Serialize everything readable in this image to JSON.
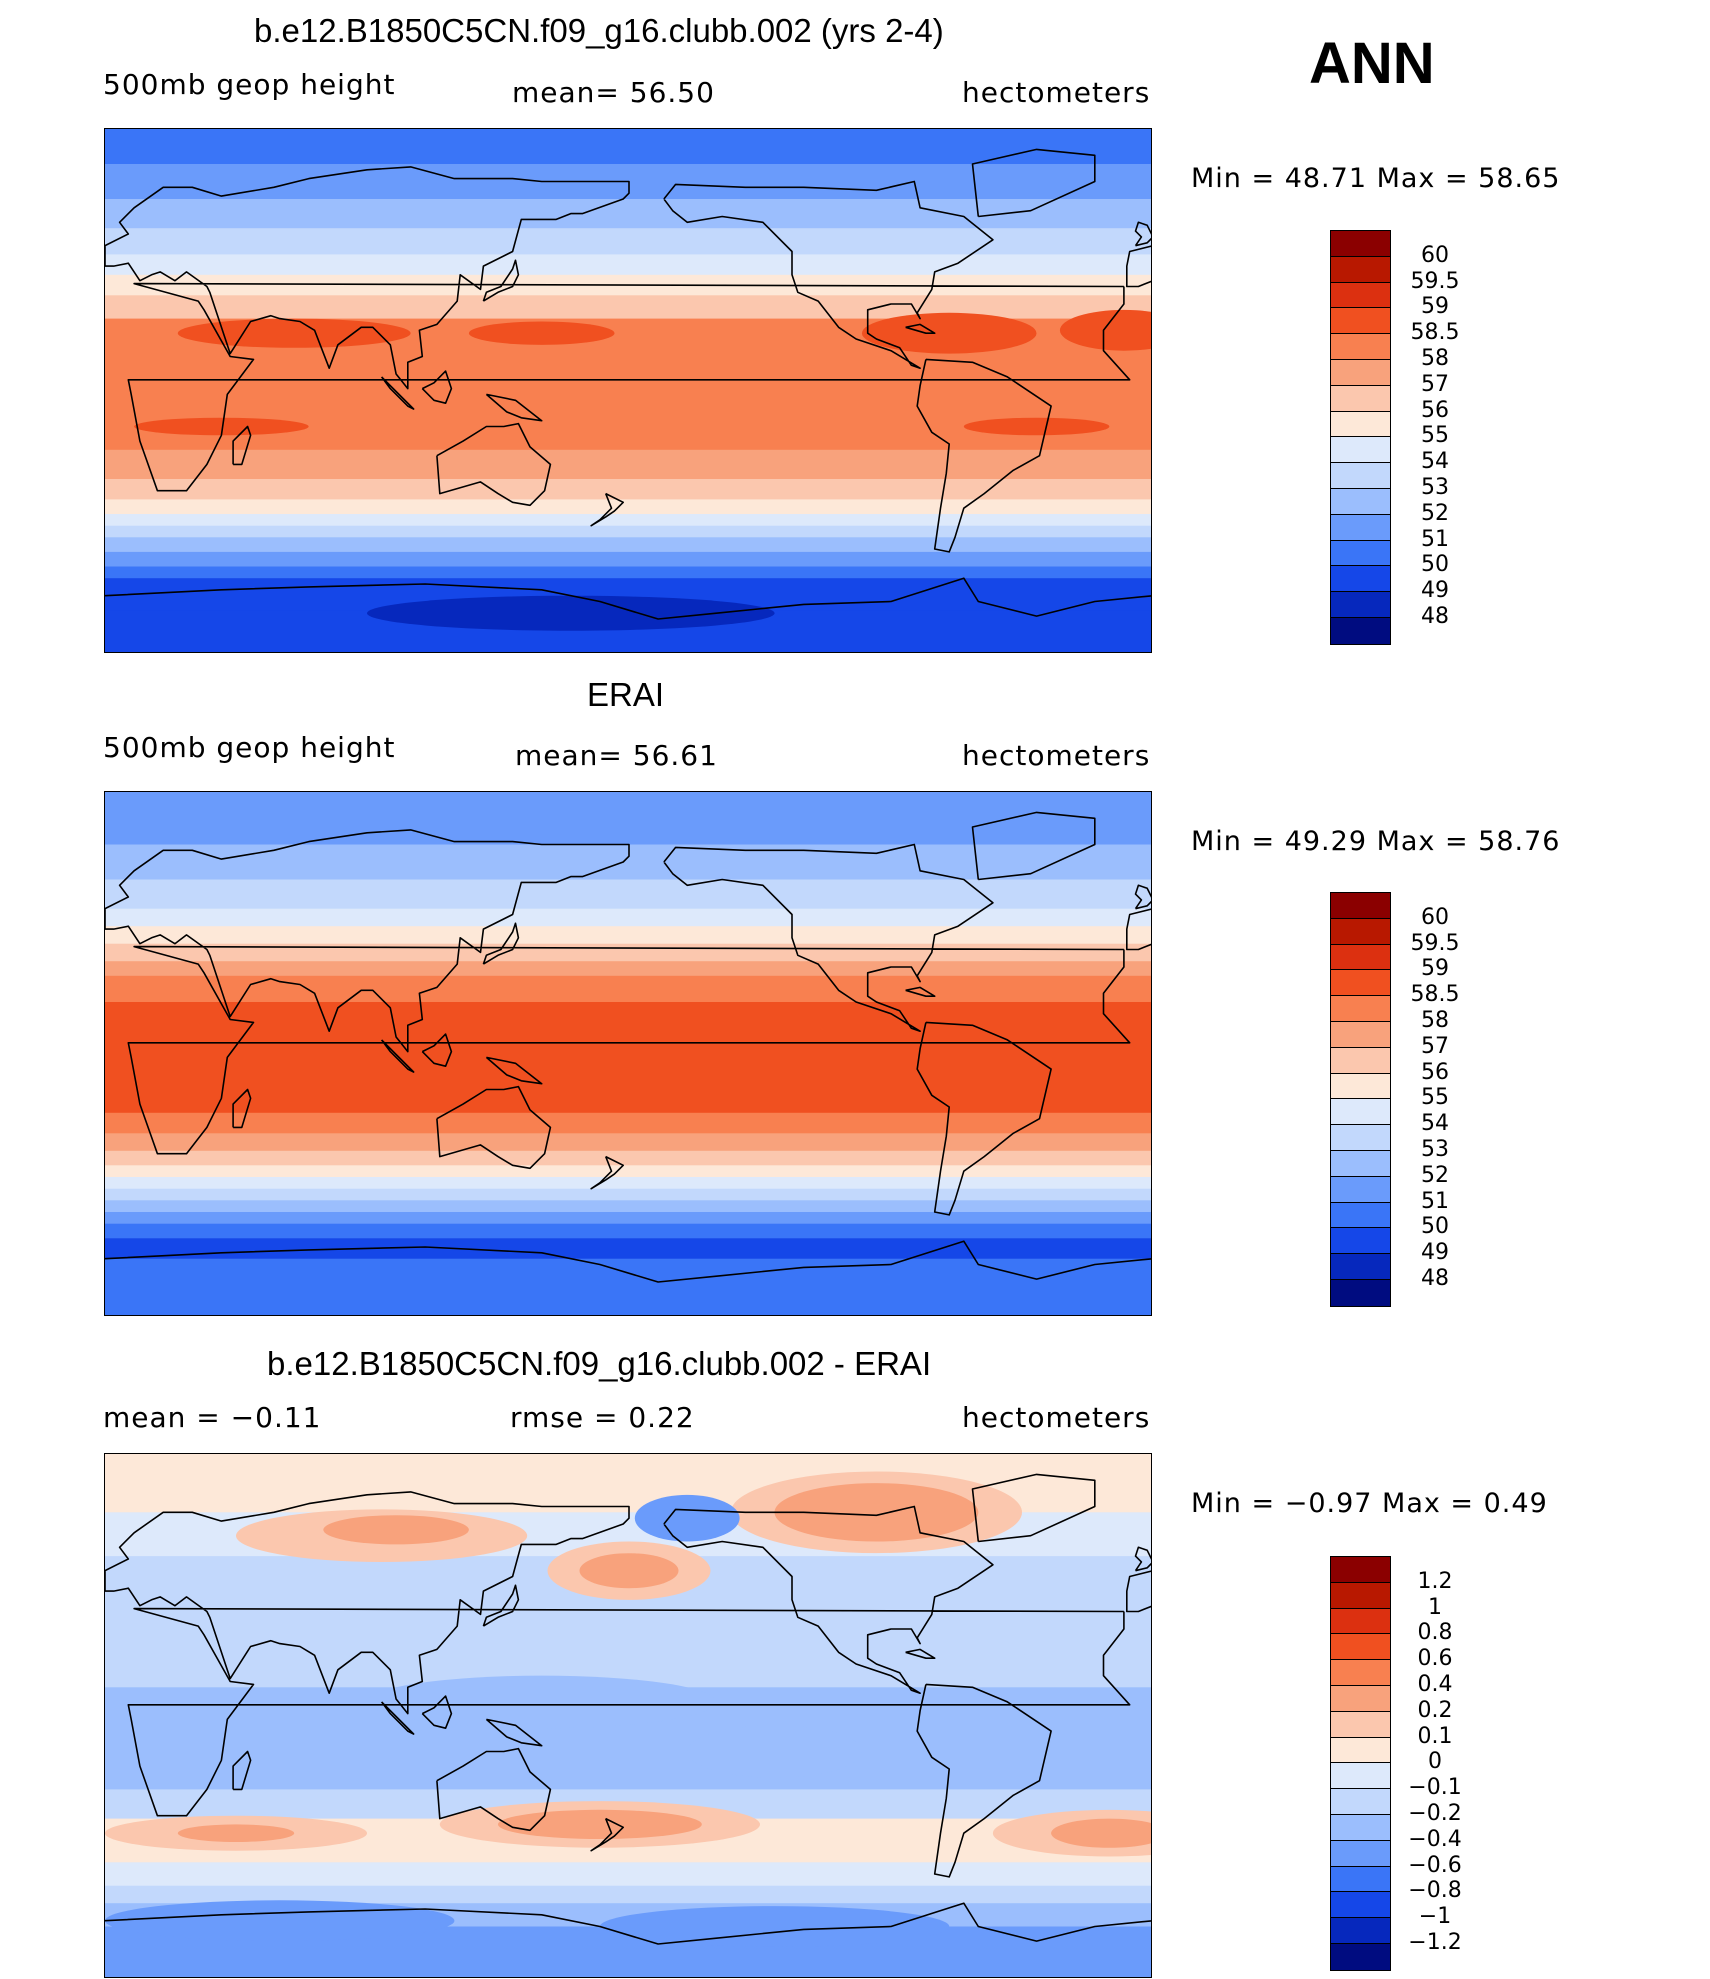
{
  "season": "ANN",
  "chart_data": [
    {
      "type": "heatmap",
      "title": "b.e12.B1850C5CN.f09_g16.clubb.002 (yrs 2-4)",
      "left_label": "500mb geop height",
      "center_label": "mean=  56.50",
      "right_label": "hectometers",
      "min_max": "Min =   48.71  Max =   58.65",
      "colorbar": {
        "levels": [
          "60",
          "59.5",
          "59",
          "58.5",
          "58",
          "57",
          "56",
          "55",
          "54",
          "53",
          "52",
          "51",
          "50",
          "49",
          "48"
        ],
        "colors": [
          "#8b0000",
          "#b81800",
          "#dc3010",
          "#f05020",
          "#f88050",
          "#f8a27c",
          "#fbc7ae",
          "#fde8d8",
          "#dde9fb",
          "#c2d8fc",
          "#9bbefd",
          "#6a9bfb",
          "#3a75f7",
          "#1547e8",
          "#0628bd",
          "#000c80"
        ]
      },
      "bands": [
        {
          "lat": 90,
          "color_index": 12
        },
        {
          "lat": 78,
          "color_index": 11
        },
        {
          "lat": 66,
          "color_index": 10
        },
        {
          "lat": 56,
          "color_index": 9
        },
        {
          "lat": 47,
          "color_index": 8
        },
        {
          "lat": 40,
          "color_index": 7
        },
        {
          "lat": 33,
          "color_index": 6
        },
        {
          "lat": 25,
          "color_index": 4
        },
        {
          "lat": -20,
          "color_index": 5
        },
        {
          "lat": -30,
          "color_index": 6
        },
        {
          "lat": -37,
          "color_index": 7
        },
        {
          "lat": -42,
          "color_index": 8
        },
        {
          "lat": -46,
          "color_index": 9
        },
        {
          "lat": -50,
          "color_index": 10
        },
        {
          "lat": -55,
          "color_index": 11
        },
        {
          "lat": -60,
          "color_index": 12
        },
        {
          "lat": -64,
          "color_index": 13
        },
        {
          "lat": -75,
          "color_index": 13
        }
      ],
      "blobs": [
        {
          "lon": 65,
          "lat": 20,
          "rlon": 40,
          "rlat": 5,
          "color_index": 3
        },
        {
          "lon": 150,
          "lat": 20,
          "rlon": 25,
          "rlat": 4,
          "color_index": 3
        },
        {
          "lon": 290,
          "lat": 20,
          "rlon": 30,
          "rlat": 7,
          "color_index": 3
        },
        {
          "lon": 350,
          "lat": 21,
          "rlon": 22,
          "rlat": 7,
          "color_index": 3
        },
        {
          "lon": 40,
          "lat": -12,
          "rlon": 30,
          "rlat": 3,
          "color_index": 3
        },
        {
          "lon": 320,
          "lat": -12,
          "rlon": 25,
          "rlat": 3,
          "color_index": 3
        },
        {
          "lon": 160,
          "lat": -76,
          "rlon": 70,
          "rlat": 6,
          "color_index": 14
        }
      ]
    },
    {
      "type": "heatmap",
      "title": "ERAI",
      "left_label": "500mb geop height",
      "center_label": "mean=  56.61",
      "right_label": "hectometers",
      "min_max": "Min =   49.29  Max =   58.76",
      "colorbar": {
        "levels": [
          "60",
          "59.5",
          "59",
          "58.5",
          "58",
          "57",
          "56",
          "55",
          "54",
          "53",
          "52",
          "51",
          "50",
          "49",
          "48"
        ],
        "colors": [
          "#8b0000",
          "#b81800",
          "#dc3010",
          "#f05020",
          "#f88050",
          "#f8a27c",
          "#fbc7ae",
          "#fde8d8",
          "#dde9fb",
          "#c2d8fc",
          "#9bbefd",
          "#6a9bfb",
          "#3a75f7",
          "#1547e8",
          "#0628bd",
          "#000c80"
        ]
      },
      "bands": [
        {
          "lat": 90,
          "color_index": 11
        },
        {
          "lat": 72,
          "color_index": 10
        },
        {
          "lat": 60,
          "color_index": 9
        },
        {
          "lat": 50,
          "color_index": 8
        },
        {
          "lat": 44,
          "color_index": 7
        },
        {
          "lat": 38,
          "color_index": 6
        },
        {
          "lat": 32,
          "color_index": 5
        },
        {
          "lat": 27,
          "color_index": 4
        },
        {
          "lat": 18,
          "color_index": 3
        },
        {
          "lat": -20,
          "color_index": 4
        },
        {
          "lat": -27,
          "color_index": 5
        },
        {
          "lat": -33,
          "color_index": 6
        },
        {
          "lat": -38,
          "color_index": 7
        },
        {
          "lat": -42,
          "color_index": 8
        },
        {
          "lat": -46,
          "color_index": 9
        },
        {
          "lat": -50,
          "color_index": 10
        },
        {
          "lat": -54,
          "color_index": 11
        },
        {
          "lat": -58,
          "color_index": 12
        },
        {
          "lat": -63,
          "color_index": 13
        },
        {
          "lat": -70,
          "color_index": 12
        }
      ],
      "blobs": []
    },
    {
      "type": "heatmap",
      "title": "b.e12.B1850C5CN.f09_g16.clubb.002 - ERAI",
      "left_label": "mean =   −0.11",
      "center_label": "rmse =    0.22",
      "right_label": "hectometers",
      "min_max": "Min =   −0.97  Max =     0.49",
      "colorbar": {
        "levels": [
          "1.2",
          "1",
          "0.8",
          "0.6",
          "0.4",
          "0.2",
          "0.1",
          "0",
          "−0.1",
          "−0.2",
          "−0.4",
          "−0.6",
          "−0.8",
          "−1",
          "−1.2"
        ],
        "colors": [
          "#8b0000",
          "#b81800",
          "#dc3010",
          "#f05020",
          "#f88050",
          "#f8a27c",
          "#fbc7ae",
          "#fde8d8",
          "#dde9fb",
          "#c2d8fc",
          "#9bbefd",
          "#6a9bfb",
          "#3a75f7",
          "#1547e8",
          "#0628bd",
          "#000c80"
        ]
      },
      "bands": [
        {
          "lat": 90,
          "color_index": 7
        },
        {
          "lat": 82,
          "color_index": 7
        },
        {
          "lat": 70,
          "color_index": 8
        },
        {
          "lat": 55,
          "color_index": 9
        },
        {
          "lat": 35,
          "color_index": 9
        },
        {
          "lat": 10,
          "color_index": 10
        },
        {
          "lat": -25,
          "color_index": 9
        },
        {
          "lat": -35,
          "color_index": 7
        },
        {
          "lat": -50,
          "color_index": 8
        },
        {
          "lat": -58,
          "color_index": 9
        },
        {
          "lat": -64,
          "color_index": 10
        },
        {
          "lat": -72,
          "color_index": 11
        }
      ],
      "blobs": [
        {
          "lon": 95,
          "lat": 62,
          "rlon": 50,
          "rlat": 9,
          "color_index": 6
        },
        {
          "lon": 100,
          "lat": 64,
          "rlon": 25,
          "rlat": 5,
          "color_index": 5
        },
        {
          "lon": 180,
          "lat": 50,
          "rlon": 28,
          "rlat": 10,
          "color_index": 6
        },
        {
          "lon": 180,
          "lat": 50,
          "rlon": 17,
          "rlat": 6,
          "color_index": 5
        },
        {
          "lon": 265,
          "lat": 70,
          "rlon": 50,
          "rlat": 14,
          "color_index": 6
        },
        {
          "lon": 265,
          "lat": 70,
          "rlon": 35,
          "rlat": 10,
          "color_index": 5
        },
        {
          "lon": 200,
          "lat": 68,
          "rlon": 18,
          "rlat": 8,
          "color_index": 11
        },
        {
          "lon": 150,
          "lat": 5,
          "rlon": 60,
          "rlat": 9,
          "color_index": 10
        },
        {
          "lon": 230,
          "lat": -12,
          "rlon": 30,
          "rlat": 9,
          "color_index": 10
        },
        {
          "lon": 170,
          "lat": -37,
          "rlon": 55,
          "rlat": 8,
          "color_index": 6
        },
        {
          "lon": 170,
          "lat": -37,
          "rlon": 35,
          "rlat": 5,
          "color_index": 5
        },
        {
          "lon": 45,
          "lat": -40,
          "rlon": 45,
          "rlat": 6,
          "color_index": 6
        },
        {
          "lon": 45,
          "lat": -40,
          "rlon": 20,
          "rlat": 3,
          "color_index": 5
        },
        {
          "lon": 345,
          "lat": -40,
          "rlon": 40,
          "rlat": 8,
          "color_index": 6
        },
        {
          "lon": 345,
          "lat": -40,
          "rlon": 20,
          "rlat": 5,
          "color_index": 5
        },
        {
          "lon": 60,
          "lat": -70,
          "rlon": 60,
          "rlat": 7,
          "color_index": 11
        },
        {
          "lon": 230,
          "lat": -72,
          "rlon": 60,
          "rlat": 7,
          "color_index": 11
        }
      ]
    }
  ]
}
